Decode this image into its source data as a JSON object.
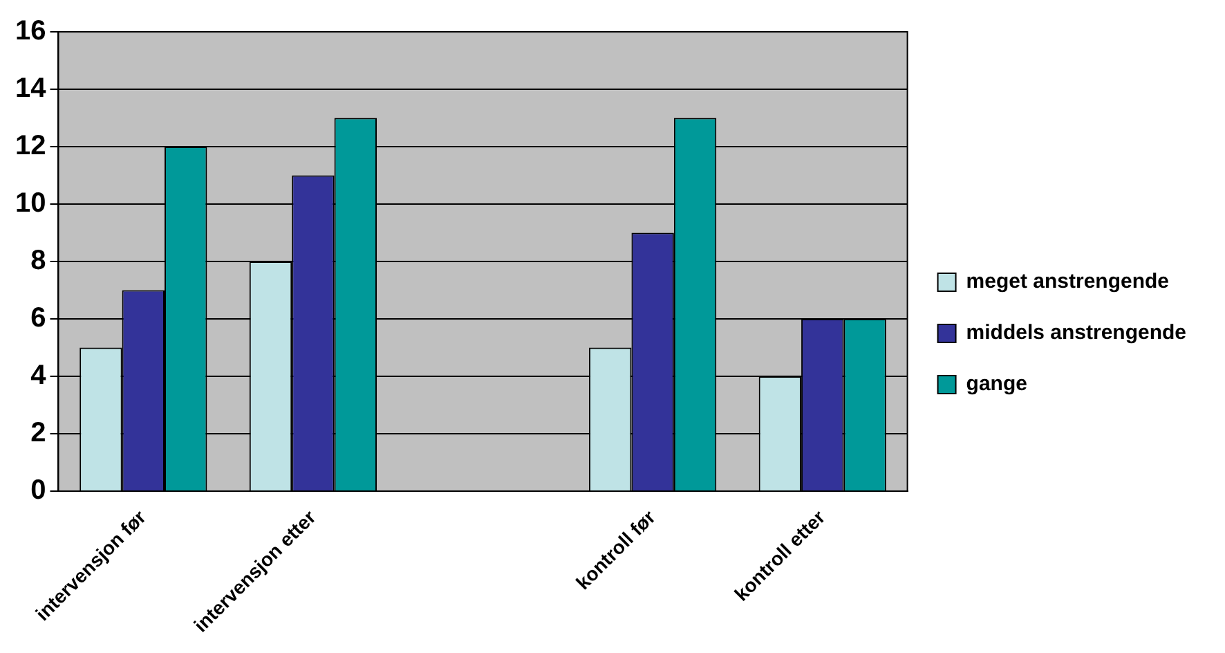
{
  "chart_data": {
    "type": "bar",
    "categories": [
      "intervensjon før",
      "intervensjon etter",
      null,
      "kontroll før",
      "kontroll etter"
    ],
    "series": [
      {
        "name": "meget anstrengende",
        "color": "#bfe3e6",
        "values": [
          5,
          8,
          null,
          5,
          4
        ]
      },
      {
        "name": "middels anstrengende",
        "color": "#333399",
        "values": [
          7,
          11,
          null,
          9,
          6
        ]
      },
      {
        "name": "gange",
        "color": "#009999",
        "values": [
          12,
          13,
          null,
          13,
          6
        ]
      }
    ],
    "ylim": [
      0,
      16
    ],
    "yticks": [
      0,
      2,
      4,
      6,
      8,
      10,
      12,
      14,
      16
    ],
    "grid": "y",
    "legend": "right"
  }
}
